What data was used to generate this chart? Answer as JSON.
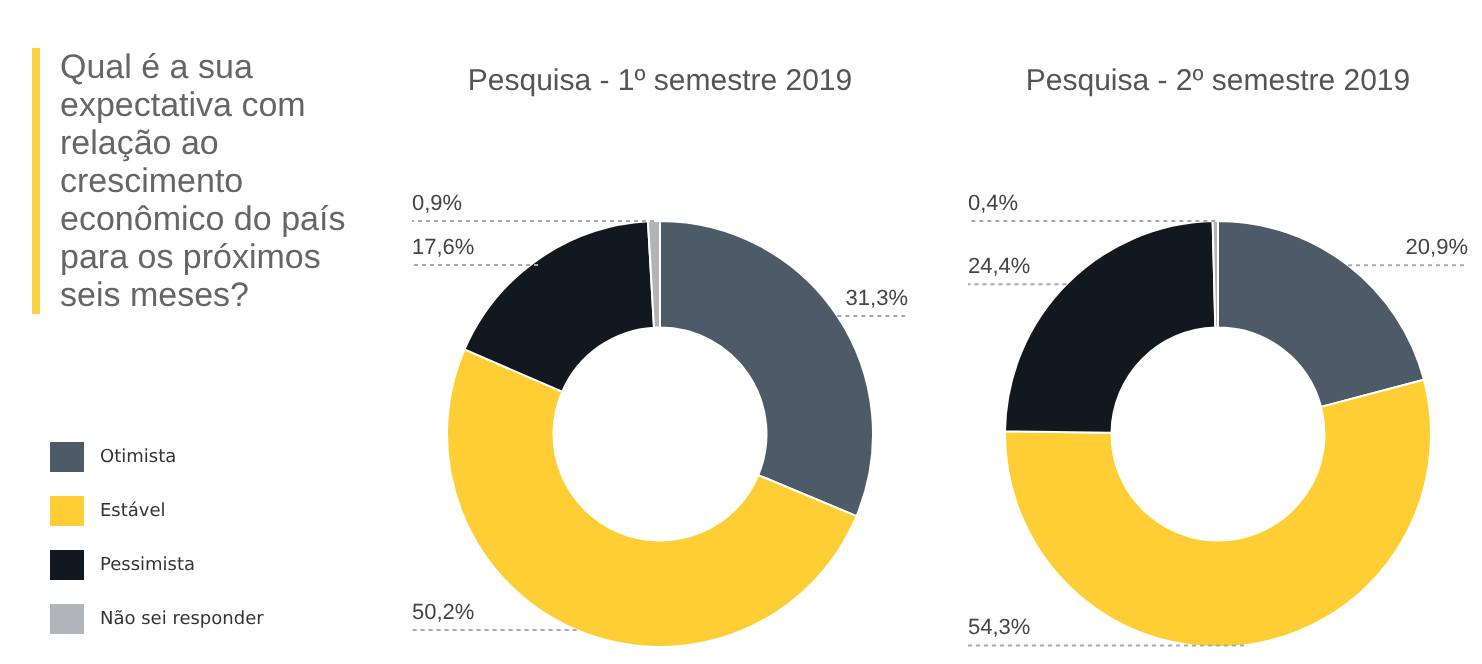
{
  "chart_data": [
    {
      "type": "other",
      "title": "Qual é a sua expectativa com relação ao crescimento econômico do país para os próximos seis meses?"
    },
    {
      "type": "donut",
      "title": "Pesquisa - 1º semestre 2019",
      "categories": [
        "Otimista",
        "Estável",
        "Pessimista",
        "Não sei responder"
      ],
      "values": [
        31.3,
        50.2,
        17.6,
        0.9
      ],
      "value_labels": [
        "31,3%",
        "50,2%",
        "17,6%",
        "0,9%"
      ],
      "colors": [
        "#4d5b68",
        "#ffcd34",
        "#111820",
        "#b0b5ba"
      ],
      "legend": "left"
    },
    {
      "type": "donut",
      "title": "Pesquisa - 2º semestre 2019",
      "categories": [
        null,
        null,
        null,
        null
      ],
      "values": [
        20.9,
        54.3,
        24.4,
        0.4
      ],
      "value_labels": [
        "20,9%",
        "54,3%",
        "24,4%",
        "0,4%"
      ],
      "colors": [
        "#4d5b68",
        "#ffcd34",
        "#111820",
        "#b0b5ba"
      ]
    }
  ]
}
